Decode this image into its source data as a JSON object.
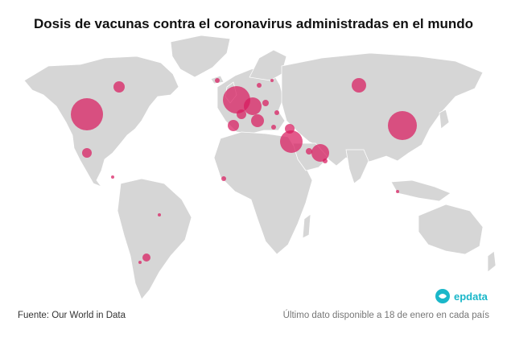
{
  "title": "Dosis de vacunas contra el coronavirus administradas en el mundo",
  "footer": {
    "source": "Fuente: Our World in Data",
    "note": "Último dato disponible a 18 de enero en cada país"
  },
  "logo": {
    "text": "epdata"
  },
  "colors": {
    "land": "#d6d6d6",
    "border": "#ffffff",
    "bubble": "#d81b5e",
    "brand": "#1ab7c9"
  }
}
